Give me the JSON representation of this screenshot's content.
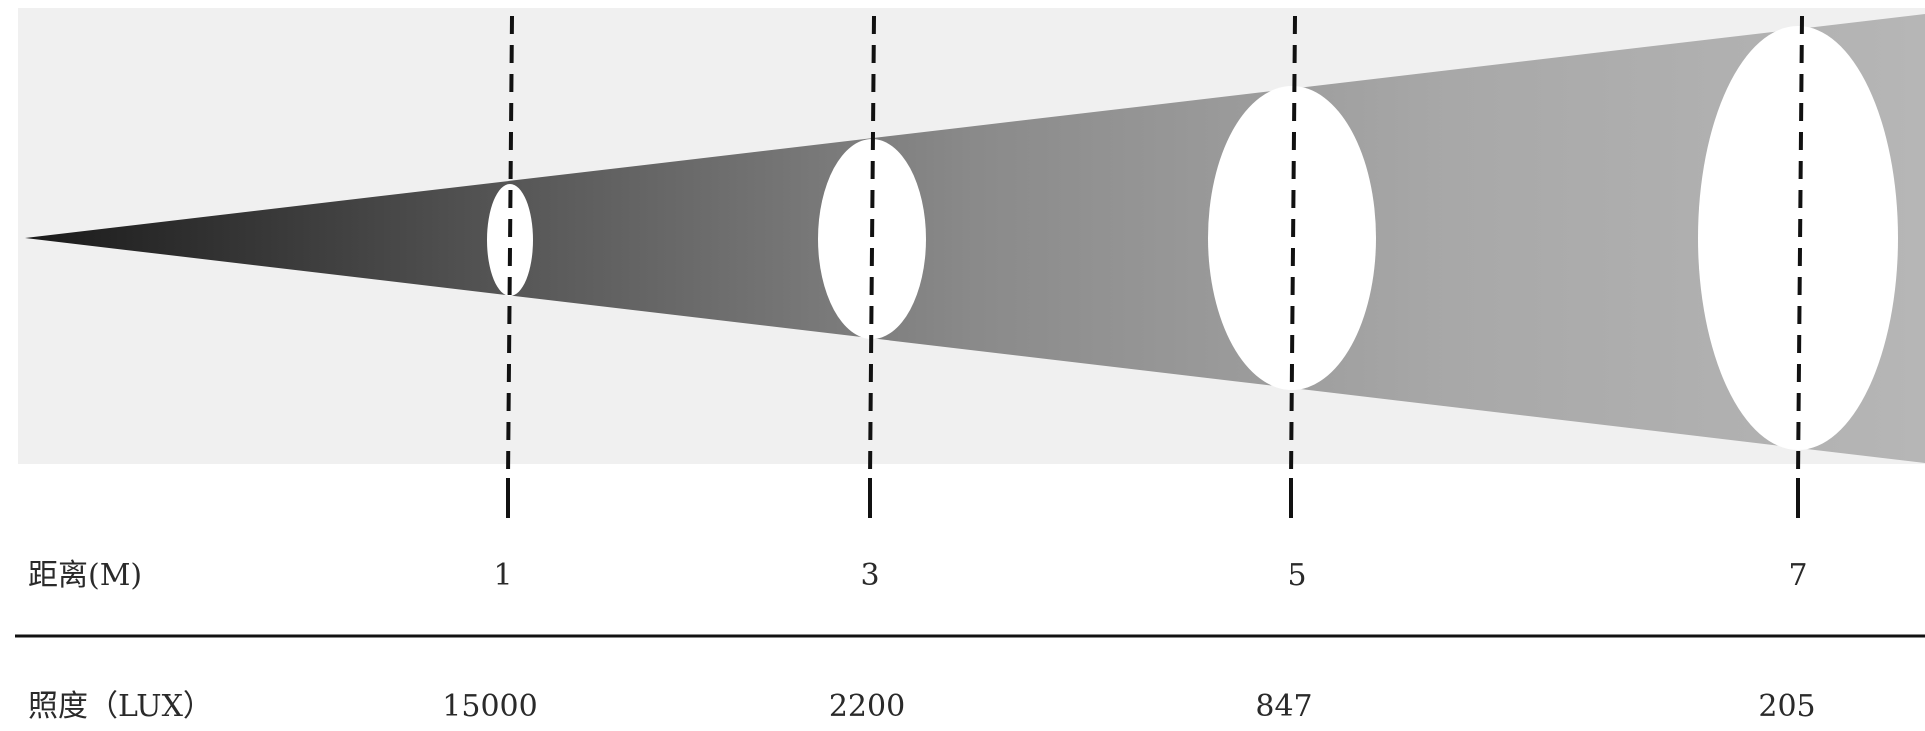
{
  "rows": {
    "distance": {
      "label": "距离(M)",
      "values": [
        "1",
        "3",
        "5",
        "7"
      ]
    },
    "illuminance": {
      "label": "照度（LUX）",
      "values": [
        "15000",
        "2200",
        "847",
        "205"
      ]
    }
  },
  "colors": {
    "panel_background": "#f0f0f0",
    "beam_dark": "#1a1a1a",
    "beam_light": "#b4b4b4",
    "spot": "#ffffff",
    "line": "#111111",
    "text": "#2a2a2a"
  }
}
